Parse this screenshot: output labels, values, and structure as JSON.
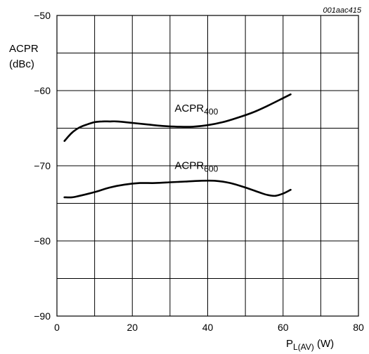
{
  "figure_id": "001aac415",
  "chart_data": {
    "type": "line",
    "xlabel": {
      "main": "P",
      "sub": "L(AV)",
      "unit": " (W)"
    },
    "ylabel": {
      "line1": "ACPR",
      "line2": "(dBc)"
    },
    "xlim": [
      0,
      80
    ],
    "ylim": [
      -90,
      -50
    ],
    "xticks": [
      "0",
      "20",
      "40",
      "60",
      "80"
    ],
    "yticks": [
      "−50",
      "−60",
      "−70",
      "−80",
      "−90"
    ],
    "grid": true,
    "series": [
      {
        "name": {
          "main": "ACPR",
          "sub": "400"
        },
        "x": [
          2,
          4,
          6,
          8,
          10,
          12,
          14,
          16,
          20,
          24,
          28,
          32,
          36,
          40,
          44,
          48,
          52,
          56,
          60,
          62
        ],
        "y": [
          -66.7,
          -65.6,
          -64.9,
          -64.5,
          -64.2,
          -64.1,
          -64.1,
          -64.1,
          -64.3,
          -64.5,
          -64.7,
          -64.8,
          -64.8,
          -64.6,
          -64.2,
          -63.6,
          -62.9,
          -62.0,
          -61.0,
          -60.5
        ]
      },
      {
        "name": {
          "main": "ACPR",
          "sub": "600"
        },
        "x": [
          2,
          4,
          6,
          10,
          14,
          18,
          22,
          26,
          30,
          34,
          38,
          42,
          46,
          50,
          54,
          56,
          58,
          60,
          62
        ],
        "y": [
          -74.2,
          -74.2,
          -74.0,
          -73.5,
          -72.9,
          -72.5,
          -72.3,
          -72.3,
          -72.2,
          -72.1,
          -72.0,
          -72.0,
          -72.3,
          -72.9,
          -73.6,
          -73.9,
          -74.0,
          -73.7,
          -73.2
        ]
      }
    ],
    "annotations": [
      {
        "series": 0,
        "x": 37,
        "y": -62.8
      },
      {
        "series": 1,
        "x": 37,
        "y": -70.4
      }
    ]
  }
}
